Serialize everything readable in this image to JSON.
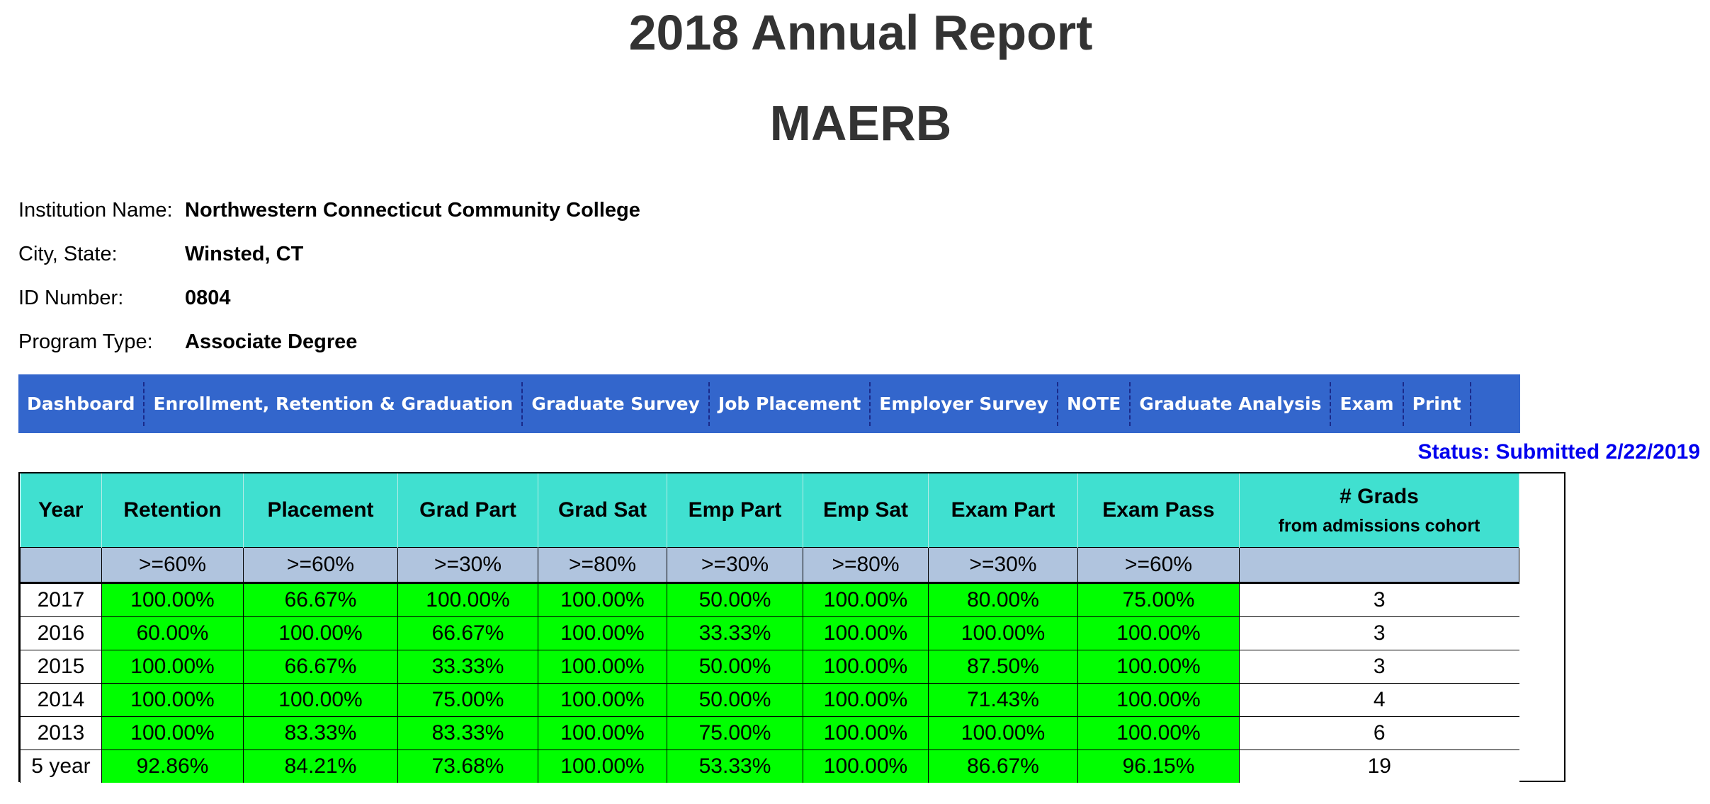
{
  "header": {
    "title": "2018 Annual Report",
    "subtitle": "MAERB"
  },
  "info": [
    {
      "label": "Institution Name:",
      "value": "Northwestern Connecticut Community College"
    },
    {
      "label": "City, State:",
      "value": "Winsted, CT"
    },
    {
      "label": "ID Number:",
      "value": "0804"
    },
    {
      "label": "Program Type:",
      "value": "Associate Degree"
    }
  ],
  "nav": [
    "Dashboard",
    "Enrollment, Retention & Graduation",
    "Graduate Survey",
    "Job Placement",
    "Employer Survey",
    "NOTE",
    "Graduate Analysis",
    "Exam",
    "Print"
  ],
  "status": "Status: Submitted 2/22/2019",
  "table": {
    "headers": [
      "Year",
      "Retention",
      "Placement",
      "Grad Part",
      "Grad Sat",
      "Emp Part",
      "Emp Sat",
      "Exam Part",
      "Exam Pass",
      "# Grads"
    ],
    "grads_sub": "from admissions cohort",
    "thresholds": [
      "",
      ">=60%",
      ">=60%",
      ">=30%",
      ">=80%",
      ">=30%",
      ">=80%",
      ">=30%",
      ">=60%",
      ""
    ],
    "rows": [
      [
        "2017",
        "100.00%",
        "66.67%",
        "100.00%",
        "100.00%",
        "50.00%",
        "100.00%",
        "80.00%",
        "75.00%",
        "3"
      ],
      [
        "2016",
        "60.00%",
        "100.00%",
        "66.67%",
        "100.00%",
        "33.33%",
        "100.00%",
        "100.00%",
        "100.00%",
        "3"
      ],
      [
        "2015",
        "100.00%",
        "66.67%",
        "33.33%",
        "100.00%",
        "50.00%",
        "100.00%",
        "87.50%",
        "100.00%",
        "3"
      ],
      [
        "2014",
        "100.00%",
        "100.00%",
        "75.00%",
        "100.00%",
        "50.00%",
        "100.00%",
        "71.43%",
        "100.00%",
        "4"
      ],
      [
        "2013",
        "100.00%",
        "83.33%",
        "83.33%",
        "100.00%",
        "75.00%",
        "100.00%",
        "100.00%",
        "100.00%",
        "6"
      ],
      [
        "5 year",
        "92.86%",
        "84.21%",
        "73.68%",
        "100.00%",
        "53.33%",
        "100.00%",
        "86.67%",
        "96.15%",
        "19"
      ]
    ]
  },
  "colors": {
    "nav_bg": "#3366cc",
    "header_bg": "#40e0d0",
    "threshold_bg": "#b0c4de",
    "pass_bg": "#00ff00",
    "status": "#0000ee"
  }
}
